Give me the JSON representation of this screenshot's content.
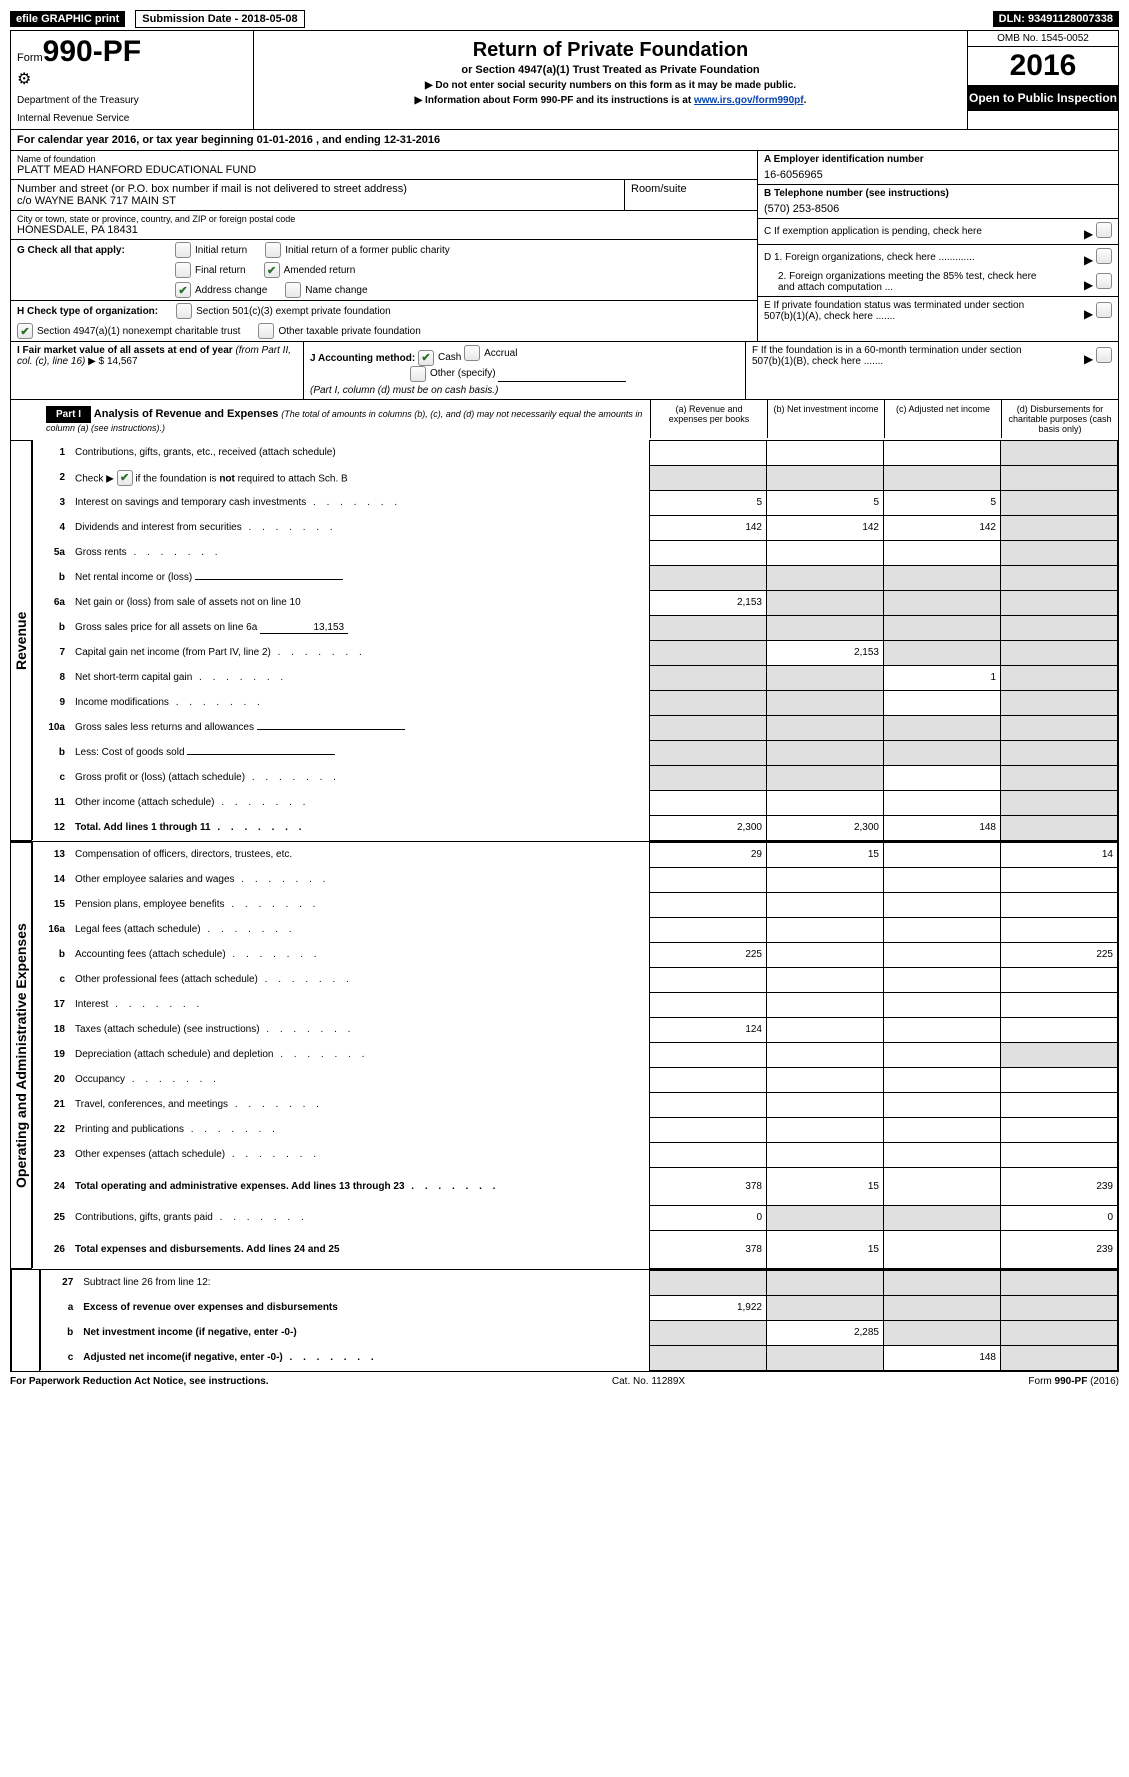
{
  "topbar": {
    "efile": "efile GRAPHIC print",
    "submission_label": "Submission Date - 2018-05-08",
    "dln": "DLN: 93491128007338"
  },
  "header": {
    "form_label": "Form",
    "form_number": "990-PF",
    "dept1": "Department of the Treasury",
    "dept2": "Internal Revenue Service",
    "title": "Return of Private Foundation",
    "subtitle": "or Section 4947(a)(1) Trust Treated as Private Foundation",
    "instr1": "▶ Do not enter social security numbers on this form as it may be made public.",
    "instr2_pre": "▶ Information about Form 990-PF and its instructions is at ",
    "instr2_link": "www.irs.gov/form990pf",
    "instr2_post": ".",
    "omb": "OMB No. 1545-0052",
    "year": "2016",
    "open": "Open to Public Inspection"
  },
  "tax_year": {
    "prefix": "For calendar year 2016, or tax year beginning ",
    "begin": "01-01-2016",
    "mid": " , and ending ",
    "end": "12-31-2016"
  },
  "foundation": {
    "name_label": "Name of foundation",
    "name": "PLATT MEAD HANFORD EDUCATIONAL FUND",
    "addr_label": "Number and street (or P.O. box number if mail is not delivered to street address)",
    "addr": "c/o WAYNE BANK 717 MAIN ST",
    "room_label": "Room/suite",
    "city_label": "City or town, state or province, country, and ZIP or foreign postal code",
    "city": "HONESDALE, PA   18431"
  },
  "right": {
    "A_label": "A Employer identification number",
    "A": "16-6056965",
    "B_label": "B Telephone number (see instructions)",
    "B": "(570) 253-8506",
    "C": "C  If exemption application is pending, check here",
    "D1": "D 1. Foreign organizations, check here .............",
    "D2": "2. Foreign organizations meeting the 85% test, check here and attach computation ...",
    "E": "E  If private foundation status was terminated under section 507(b)(1)(A), check here .......",
    "F": "F  If the foundation is in a 60-month termination under section 507(b)(1)(B), check here ......."
  },
  "G": {
    "label": "G Check all that apply:",
    "opts": {
      "initial": "Initial return",
      "initial_former": "Initial return of a former public charity",
      "final": "Final return",
      "amended": "Amended return",
      "address": "Address change",
      "name": "Name change"
    },
    "checked": {
      "amended": true,
      "address": true
    }
  },
  "H": {
    "label": "H Check type of organization:",
    "opt1": "Section 501(c)(3) exempt private foundation",
    "opt2": "Section 4947(a)(1) nonexempt charitable trust",
    "opt3": "Other taxable private foundation",
    "checked2": true
  },
  "I": {
    "label1": "I Fair market value of all assets at end of year ",
    "label1_it": "(from Part II, col. (c), line 16)",
    "arrow": "▶",
    "cur": "$",
    "value": "14,567"
  },
  "J": {
    "label": "J Accounting method:",
    "cash": "Cash",
    "accrual": "Accrual",
    "other": "Other (specify)",
    "note": "(Part I, column (d) must be on cash basis.)",
    "cash_checked": true
  },
  "part1": {
    "bar": "Part I",
    "title": "Analysis of Revenue and Expenses",
    "note": "(The total of amounts in columns (b), (c), and (d) may not necessarily equal the amounts in column (a) (see instructions).)",
    "cols": {
      "a": "(a)    Revenue and expenses per books",
      "b": "(b)    Net investment income",
      "c": "(c)    Adjusted net income",
      "d": "(d)    Disbursements for charitable purposes (cash basis only)"
    }
  },
  "revenue_label": "Revenue",
  "expenses_label": "Operating and Administrative Expenses",
  "rows": [
    {
      "n": "1",
      "label": "Contributions, gifts, grants, etc., received (attach schedule)",
      "a": "",
      "b": "",
      "c": "",
      "d": "",
      "d_shade": true
    },
    {
      "n": "2",
      "label": "Check ▶  ☑  if the foundation is not required to attach Sch. B",
      "a": "",
      "b": "",
      "c": "",
      "d": "",
      "all_shade": true,
      "is_check": true
    },
    {
      "n": "3",
      "label": "Interest on savings and temporary cash investments",
      "a": "5",
      "b": "5",
      "c": "5",
      "d": "",
      "d_shade": true,
      "dots": true
    },
    {
      "n": "4",
      "label": "Dividends and interest from securities",
      "a": "142",
      "b": "142",
      "c": "142",
      "d": "",
      "d_shade": true,
      "dots": true
    },
    {
      "n": "5a",
      "label": "Gross rents",
      "a": "",
      "b": "",
      "c": "",
      "d": "",
      "d_shade": true,
      "dots": true
    },
    {
      "n": "b",
      "label": "Net rental income or (loss)",
      "a": "",
      "b": "",
      "c": "",
      "d": "",
      "all_shade": true,
      "inline_field": true
    },
    {
      "n": "6a",
      "label": "Net gain or (loss) from sale of assets not on line 10",
      "a": "2,153",
      "b": "",
      "c": "",
      "d": "",
      "bcd_shade": true
    },
    {
      "n": "b",
      "label": "Gross sales price for all assets on line 6a",
      "inline_val": "13,153",
      "all_shade": true
    },
    {
      "n": "7",
      "label": "Capital gain net income (from Part IV, line 2)",
      "a": "",
      "b": "2,153",
      "c": "",
      "d": "",
      "a_shade": true,
      "cd_shade": true,
      "dots": true
    },
    {
      "n": "8",
      "label": "Net short-term capital gain",
      "a": "",
      "b": "",
      "c": "1",
      "d": "",
      "ab_shade": true,
      "d_shade": true,
      "dots": true
    },
    {
      "n": "9",
      "label": "Income modifications",
      "a": "",
      "b": "",
      "c": "",
      "d": "",
      "ab_shade": true,
      "d_shade": true,
      "dots": true
    },
    {
      "n": "10a",
      "label": "Gross sales less returns and allowances",
      "inline_field": true,
      "all_shade": true
    },
    {
      "n": "b",
      "label": "Less: Cost of goods sold",
      "inline_field": true,
      "all_shade": true,
      "dots": true
    },
    {
      "n": "c",
      "label": "Gross profit or (loss) (attach schedule)",
      "a": "",
      "b": "",
      "c": "",
      "d": "",
      "ab_shade": true,
      "d_shade": true,
      "dots": true
    },
    {
      "n": "11",
      "label": "Other income (attach schedule)",
      "a": "",
      "b": "",
      "c": "",
      "d": "",
      "d_shade": true,
      "dots": true
    },
    {
      "n": "12",
      "label": "Total. Add lines 1 through 11",
      "a": "2,300",
      "b": "2,300",
      "c": "148",
      "d": "",
      "d_shade": true,
      "bold": true,
      "dots": true
    }
  ],
  "exp_rows": [
    {
      "n": "13",
      "label": "Compensation of officers, directors, trustees, etc.",
      "a": "29",
      "b": "15",
      "c": "",
      "d": "14"
    },
    {
      "n": "14",
      "label": "Other employee salaries and wages",
      "dots": true
    },
    {
      "n": "15",
      "label": "Pension plans, employee benefits",
      "dots": true
    },
    {
      "n": "16a",
      "label": "Legal fees (attach schedule)",
      "dots": true
    },
    {
      "n": "b",
      "label": "Accounting fees (attach schedule)",
      "a": "225",
      "d": "225",
      "dots": true
    },
    {
      "n": "c",
      "label": "Other professional fees (attach schedule)",
      "dots": true
    },
    {
      "n": "17",
      "label": "Interest",
      "dots": true
    },
    {
      "n": "18",
      "label": "Taxes (attach schedule) (see instructions)",
      "a": "124",
      "dots": true
    },
    {
      "n": "19",
      "label": "Depreciation (attach schedule) and depletion",
      "d_shade": true,
      "dots": true
    },
    {
      "n": "20",
      "label": "Occupancy",
      "dots": true
    },
    {
      "n": "21",
      "label": "Travel, conferences, and meetings",
      "dots": true
    },
    {
      "n": "22",
      "label": "Printing and publications",
      "dots": true
    },
    {
      "n": "23",
      "label": "Other expenses (attach schedule)",
      "dots": true
    },
    {
      "n": "24",
      "label": "Total operating and administrative expenses. Add lines 13 through 23",
      "a": "378",
      "b": "15",
      "d": "239",
      "bold": true,
      "dots": true,
      "tall": true
    },
    {
      "n": "25",
      "label": "Contributions, gifts, grants paid",
      "a": "0",
      "d": "0",
      "bc_shade": true,
      "dots": true
    },
    {
      "n": "26",
      "label": "Total expenses and disbursements. Add lines 24 and 25",
      "a": "378",
      "b": "15",
      "d": "239",
      "bold": true,
      "tall": true
    }
  ],
  "bottom_rows": [
    {
      "n": "27",
      "label": "Subtract line 26 from line 12:",
      "all_shade": true
    },
    {
      "n": "a",
      "label": "Excess of revenue over expenses and disbursements",
      "a": "1,922",
      "bcd_shade": true,
      "bold": true
    },
    {
      "n": "b",
      "label": "Net investment income (if negative, enter -0-)",
      "b": "2,285",
      "a_shade": true,
      "cd_shade": true,
      "bold": true
    },
    {
      "n": "c",
      "label": "Adjusted net income(if negative, enter -0-)",
      "c": "148",
      "ab_shade": true,
      "d_shade": true,
      "bold": true,
      "dots": true
    }
  ],
  "footer": {
    "left": "For Paperwork Reduction Act Notice, see instructions.",
    "mid": "Cat. No. 11289X",
    "right": "Form 990-PF (2016)",
    "right_bold": "990-PF"
  }
}
